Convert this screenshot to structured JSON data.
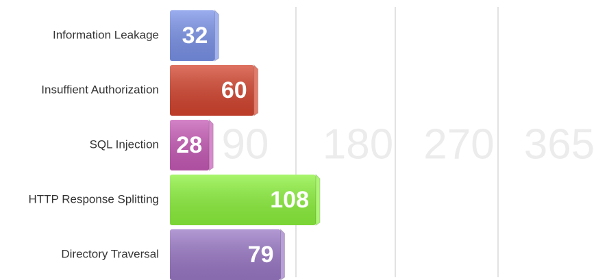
{
  "chart_data": {
    "type": "bar",
    "orientation": "horizontal",
    "categories": [
      "Information Leakage",
      "Insuffient Authorization",
      "SQL Injection",
      "HTTP Response Splitting",
      "Directory Traversal"
    ],
    "values": [
      32,
      60,
      28,
      108,
      79
    ],
    "colors": [
      "#7a92e8",
      "#d4442e",
      "#c65ab6",
      "#8cf23c",
      "#9a78c6"
    ],
    "xlim": [
      0,
      365
    ],
    "xticks": [
      90,
      180,
      270,
      365
    ],
    "grid": true
  }
}
